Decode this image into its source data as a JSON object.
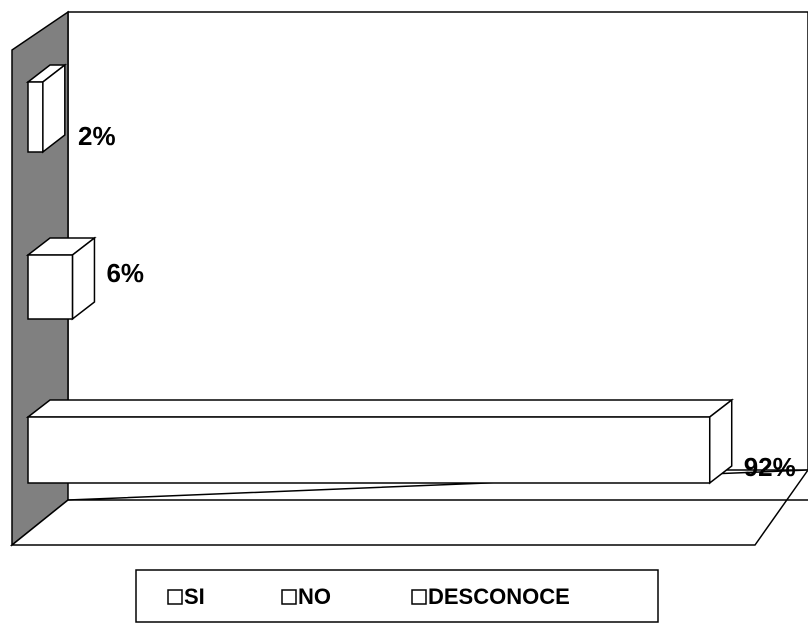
{
  "chart_data": {
    "type": "bar",
    "orientation": "horizontal",
    "categories": [
      "SI",
      "NO",
      "DESCONOCE"
    ],
    "values": [
      92,
      6,
      2
    ],
    "value_labels": [
      "92%",
      "6%",
      "2%"
    ],
    "color": "#ffffff",
    "xlim": [
      0,
      100
    ]
  }
}
